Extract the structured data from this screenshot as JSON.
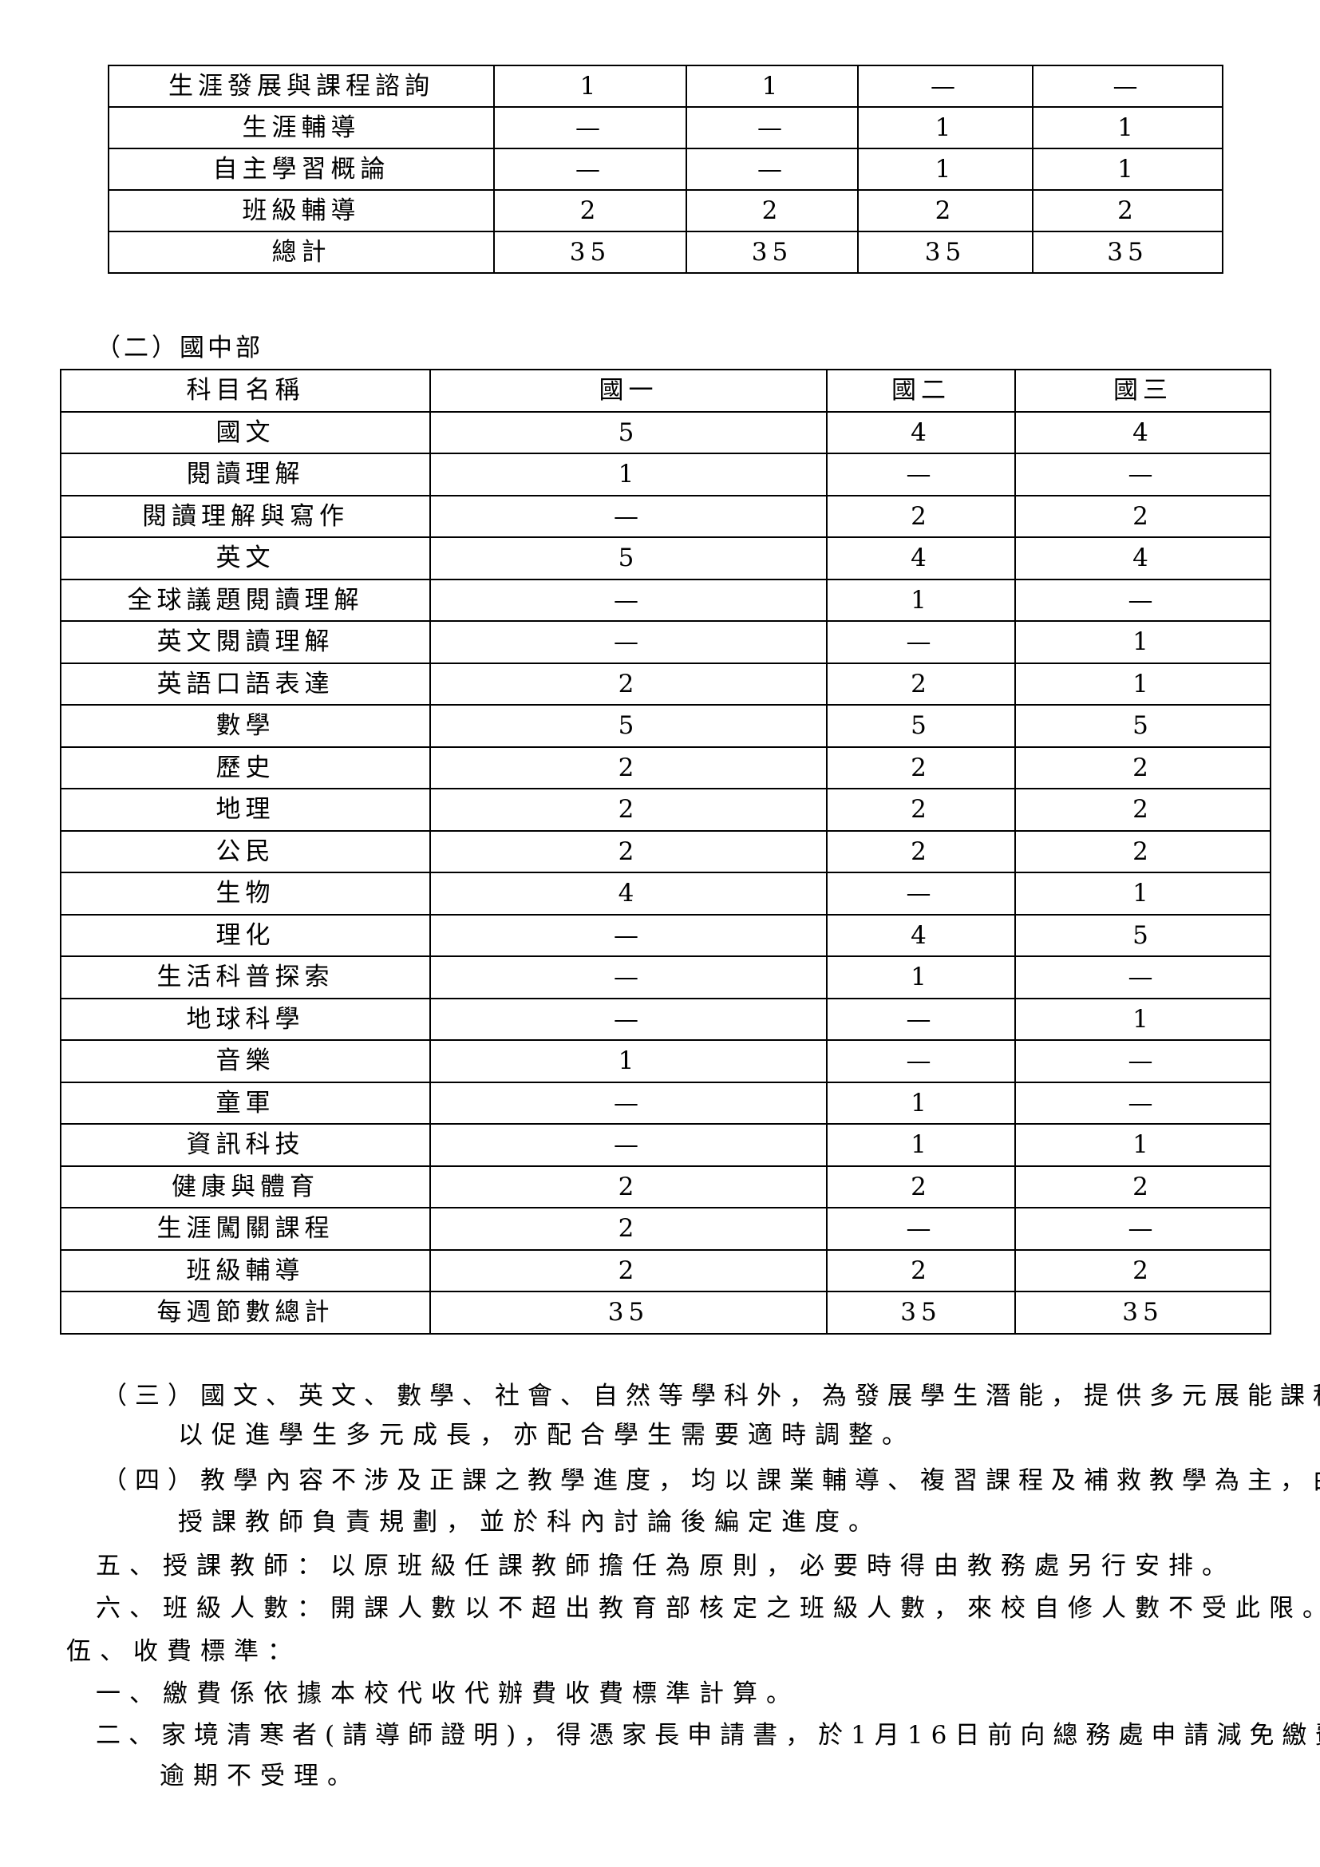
{
  "table_high": {
    "rows": [
      [
        "生涯發展與課程諮詢",
        "1",
        "1",
        "—",
        "—"
      ],
      [
        "生涯輔導",
        "—",
        "—",
        "1",
        "1"
      ],
      [
        "自主學習概論",
        "—",
        "—",
        "1",
        "1"
      ],
      [
        "班級輔導",
        "2",
        "2",
        "2",
        "2"
      ],
      [
        "總計",
        "35",
        "35",
        "35",
        "35"
      ]
    ]
  },
  "section_junior": "（二）國中部",
  "table_junior": {
    "header": [
      "科目名稱",
      "國一",
      "國二",
      "國三"
    ],
    "rows": [
      [
        "國文",
        "5",
        "4",
        "4"
      ],
      [
        "閱讀理解",
        "1",
        "—",
        "—"
      ],
      [
        "閱讀理解與寫作",
        "—",
        "2",
        "2"
      ],
      [
        "英文",
        "5",
        "4",
        "4"
      ],
      [
        "全球議題閱讀理解",
        "—",
        "1",
        "—"
      ],
      [
        "英文閱讀理解",
        "—",
        "—",
        "1"
      ],
      [
        "英語口語表達",
        "2",
        "2",
        "1"
      ],
      [
        "數學",
        "5",
        "5",
        "5"
      ],
      [
        "歷史",
        "2",
        "2",
        "2"
      ],
      [
        "地理",
        "2",
        "2",
        "2"
      ],
      [
        "公民",
        "2",
        "2",
        "2"
      ],
      [
        "生物",
        "4",
        "—",
        "1"
      ],
      [
        "理化",
        "—",
        "4",
        "5"
      ],
      [
        "生活科普探索",
        "—",
        "1",
        "—"
      ],
      [
        "地球科學",
        "—",
        "—",
        "1"
      ],
      [
        "音樂",
        "1",
        "—",
        "—"
      ],
      [
        "童軍",
        "—",
        "1",
        "—"
      ],
      [
        "資訊科技",
        "—",
        "1",
        "1"
      ],
      [
        "健康與體育",
        "2",
        "2",
        "2"
      ],
      [
        "生涯闖關課程",
        "2",
        "—",
        "—"
      ],
      [
        "班級輔導",
        "2",
        "2",
        "2"
      ],
      [
        "每週節數總計",
        "35",
        "35",
        "35"
      ]
    ]
  },
  "paragraphs": [
    "（三）國文、英文、數學、社會、自然等學科外，為發展學生潛能，提供多元展能課程，",
    "以促進學生多元成長，亦配合學生需要適時調整。",
    "（四）教學內容不涉及正課之教學進度，均以課業輔導、複習課程及補救教學為主，由",
    "授課教師負責規劃，並於科內討論後編定進度。",
    "五、授課教師：以原班級任課教師擔任為原則，必要時得由教務處另行安排。",
    "六、班級人數：開課人數以不超出教育部核定之班級人數，來校自修人數不受此限。",
    "伍、收費標準：",
    "一、繳費係依據本校代收代辦費收費標準計算。",
    "二、家境清寒者(請導師證明)，得憑家長申請書，於1月16日前向總務處申請減免繳費，",
    "逾期不受理。"
  ]
}
